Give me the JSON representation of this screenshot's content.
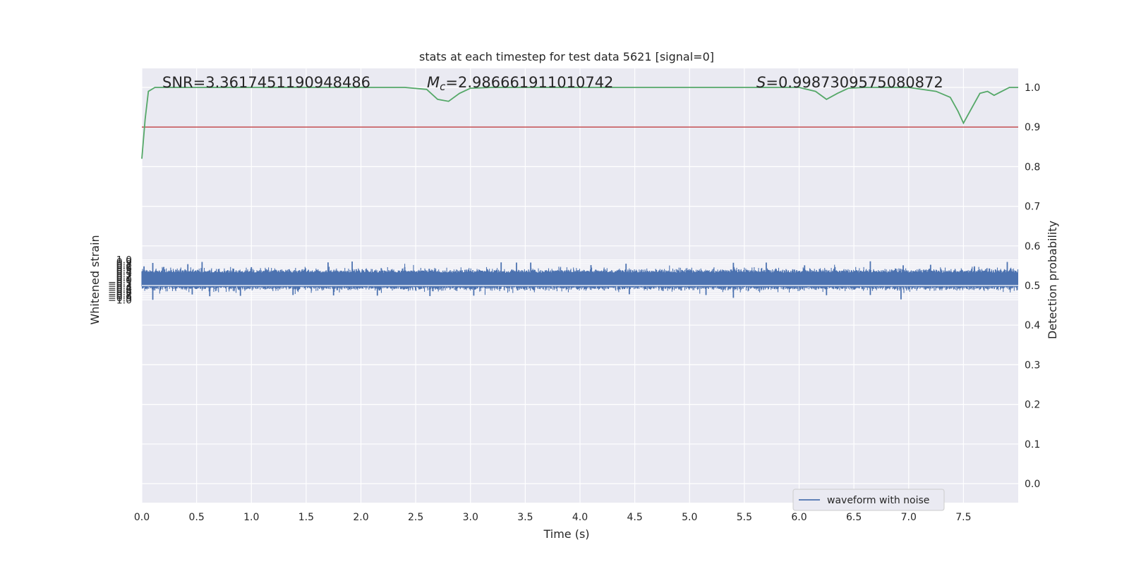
{
  "chart_data": {
    "type": "line",
    "title": "stats at each timestep for test data 5621 [signal=0]",
    "xlabel": "Time (s)",
    "ylabel": "Whitened strain",
    "y2label": "Detection probability",
    "xlim": [
      0.0,
      8.0
    ],
    "ylim": [
      -1.1,
      1.06
    ],
    "y2lim": [
      -0.045,
      1.045
    ],
    "xticks": [
      "0.0",
      "0.5",
      "1.0",
      "1.5",
      "2.0",
      "2.5",
      "3.0",
      "3.5",
      "4.0",
      "4.5",
      "5.0",
      "5.5",
      "6.0",
      "6.5",
      "7.0",
      "7.5"
    ],
    "yticks": [
      "1.0",
      "0.9",
      "0.8",
      "0.7",
      "0.6",
      "0.5",
      "0.4",
      "0.3",
      "0.2",
      "0.1",
      "0.0",
      "−0.1",
      "−0.2",
      "−0.3",
      "−0.4",
      "−0.5",
      "−0.6",
      "−0.7",
      "−0.8",
      "−0.9",
      "−1.0"
    ],
    "y2ticks": [
      "1.0",
      "0.9",
      "0.8",
      "0.7",
      "0.6",
      "0.5",
      "0.4",
      "0.3",
      "0.2",
      "0.1",
      "0.0"
    ],
    "grid": true,
    "legend_placement": "lower-right",
    "annotations": {
      "snr_label": "SNR=3.3617451190948486",
      "mc_symbol": "M",
      "mc_subscript": "c",
      "mc_value": "=2.986661911010742",
      "s_symbol": "S",
      "s_value": "=0.9987309575080872"
    },
    "series": [
      {
        "name": "waveform with noise",
        "axis": "left",
        "color": "#4c72b0",
        "envelope": {
          "typical_peak": 0.35,
          "typical_trough": -0.32,
          "extremes": [
            {
              "x": 0.02,
              "y": 0.68
            },
            {
              "x": 0.1,
              "y": 0.85
            },
            {
              "x": 0.1,
              "y": -1.0
            },
            {
              "x": 0.2,
              "y": 0.65
            },
            {
              "x": 0.42,
              "y": 0.79
            },
            {
              "x": 0.46,
              "y": -0.73
            },
            {
              "x": 0.55,
              "y": 0.9
            },
            {
              "x": 0.62,
              "y": -0.82
            },
            {
              "x": 0.9,
              "y": -0.8
            },
            {
              "x": 1.0,
              "y": 0.64
            },
            {
              "x": 1.38,
              "y": -0.76
            },
            {
              "x": 1.7,
              "y": 0.88
            },
            {
              "x": 1.75,
              "y": -0.78
            },
            {
              "x": 1.92,
              "y": 0.92
            },
            {
              "x": 2.15,
              "y": -0.79
            },
            {
              "x": 2.4,
              "y": 0.64
            },
            {
              "x": 2.63,
              "y": -0.81
            },
            {
              "x": 3.03,
              "y": -0.79
            },
            {
              "x": 3.28,
              "y": 0.88
            },
            {
              "x": 3.42,
              "y": 0.87
            },
            {
              "x": 3.55,
              "y": 0.87
            },
            {
              "x": 4.1,
              "y": 0.74
            },
            {
              "x": 4.42,
              "y": 0.81
            },
            {
              "x": 4.45,
              "y": -0.72
            },
            {
              "x": 5.15,
              "y": -0.76
            },
            {
              "x": 5.4,
              "y": -0.9
            },
            {
              "x": 5.4,
              "y": 0.86
            },
            {
              "x": 5.7,
              "y": 0.87
            },
            {
              "x": 6.05,
              "y": 0.73
            },
            {
              "x": 6.25,
              "y": -0.77
            },
            {
              "x": 6.65,
              "y": 0.93
            },
            {
              "x": 6.65,
              "y": -0.76
            },
            {
              "x": 6.93,
              "y": -0.98
            },
            {
              "x": 6.95,
              "y": 0.73
            },
            {
              "x": 7.2,
              "y": 0.76
            },
            {
              "x": 7.6,
              "y": 0.68
            },
            {
              "x": 7.9,
              "y": 0.9
            }
          ]
        }
      },
      {
        "name": "",
        "axis": "right",
        "color": "#55a868",
        "x": [
          0.0,
          0.03,
          0.06,
          0.12,
          0.3,
          1.0,
          2.0,
          2.4,
          2.6,
          2.7,
          2.8,
          2.9,
          3.0,
          3.2,
          4.0,
          5.0,
          6.0,
          6.15,
          6.25,
          6.35,
          6.45,
          6.6,
          7.0,
          7.25,
          7.38,
          7.45,
          7.5,
          7.58,
          7.65,
          7.72,
          7.78,
          7.85,
          7.92,
          8.0
        ],
        "values": [
          0.82,
          0.92,
          0.99,
          1.0,
          1.0,
          1.0,
          1.0,
          1.0,
          0.995,
          0.97,
          0.965,
          0.985,
          0.998,
          1.0,
          1.0,
          1.0,
          1.0,
          0.99,
          0.97,
          0.985,
          0.998,
          1.0,
          1.0,
          0.99,
          0.975,
          0.94,
          0.91,
          0.95,
          0.985,
          0.99,
          0.98,
          0.99,
          1.0,
          1.0
        ]
      },
      {
        "name": "",
        "axis": "right",
        "color": "#c44e52",
        "type": "hline",
        "value": 0.9
      }
    ]
  }
}
